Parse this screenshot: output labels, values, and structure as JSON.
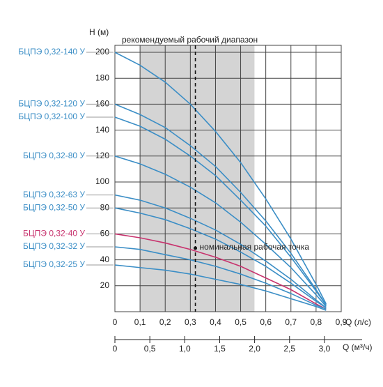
{
  "chart_data": {
    "type": "line",
    "y_label": "H (м)",
    "x_label": "Q (л/с)",
    "x2_label": "Q (м³/ч)",
    "grid": true,
    "recommended_range": {
      "label": "рекомендуемый рабочий диапазон",
      "x": [
        0.1,
        0.555
      ],
      "color": "#d4d4d4"
    },
    "nominal_point": {
      "label": "номинальная рабочая точка",
      "x": 0.32,
      "y": 49
    },
    "xlim": [
      0,
      0.9
    ],
    "ylim": [
      0,
      200
    ],
    "xticks": [
      0,
      {
        "value": 0.1,
        "label": "0,1"
      },
      {
        "value": 0.2,
        "label": "0,2"
      },
      {
        "value": 0.3,
        "label": "0,3"
      },
      {
        "value": 0.4,
        "label": "0,4"
      },
      {
        "value": 0.5,
        "label": "0,5"
      },
      {
        "value": 0.6,
        "label": "0,6"
      },
      {
        "value": 0.7,
        "label": "0,7"
      },
      {
        "value": 0.8,
        "label": "0,8"
      },
      {
        "value": 0.9,
        "label": "0,9"
      }
    ],
    "yticks": [
      20,
      40,
      60,
      80,
      100,
      120,
      140,
      160,
      180,
      200
    ],
    "x2lim": [
      0,
      3.24
    ],
    "x2ticks": [
      0,
      {
        "value": 0.5,
        "label": "0,5"
      },
      {
        "value": 1.0,
        "label": "1,0"
      },
      {
        "value": 1.5,
        "label": "1,5"
      },
      {
        "value": 2.0,
        "label": "2,0"
      },
      {
        "value": 2.5,
        "label": "2,5"
      },
      {
        "value": 3.0,
        "label": "3,0"
      }
    ],
    "x": [
      0,
      0.1,
      0.2,
      0.3,
      0.4,
      0.5,
      0.6,
      0.7,
      0.8,
      0.84
    ],
    "series": [
      {
        "name": "БЦПЭ 0,32-140 У",
        "color": "#3b8ec6",
        "values": [
          200,
          190,
          177,
          160,
          139,
          115,
          87,
          56,
          21,
          6
        ]
      },
      {
        "name": "БЦПЭ 0,32-120 У",
        "color": "#3b8ec6",
        "values": [
          160,
          152,
          142,
          128,
          112,
          92,
          70,
          45,
          17,
          5
        ]
      },
      {
        "name": "БЦПЭ 0,32-100 У",
        "color": "#3b8ec6",
        "values": [
          150,
          143,
          133,
          120,
          105,
          86,
          66,
          42,
          16,
          5
        ]
      },
      {
        "name": "БЦПЭ 0,32-80 У",
        "color": "#3b8ec6",
        "values": [
          120,
          114,
          106,
          96,
          84,
          69,
          52,
          34,
          13,
          4
        ]
      },
      {
        "name": "БЦПЭ 0,32-63 У",
        "color": "#3b8ec6",
        "values": [
          90,
          86,
          80,
          72,
          63,
          52,
          39,
          25,
          9,
          3
        ]
      },
      {
        "name": "БЦПЭ 0,32-50 У",
        "color": "#3b8ec6",
        "values": [
          80,
          76,
          71,
          64,
          56,
          46,
          35,
          22,
          8,
          3
        ]
      },
      {
        "name": "БЦПЭ 0,32-40 У",
        "color": "#c8336e",
        "values": [
          60,
          57,
          53,
          48,
          42,
          35,
          26,
          17,
          6,
          2
        ]
      },
      {
        "name": "БЦПЭ 0,32-32 У",
        "color": "#3b8ec6",
        "values": [
          50,
          48,
          44,
          40,
          35,
          29,
          22,
          14,
          5,
          2
        ]
      },
      {
        "name": "БЦПЭ 0,32-25 У",
        "color": "#3b8ec6",
        "values": [
          36,
          34,
          32,
          29,
          25,
          21,
          16,
          10,
          4,
          1
        ]
      }
    ]
  }
}
